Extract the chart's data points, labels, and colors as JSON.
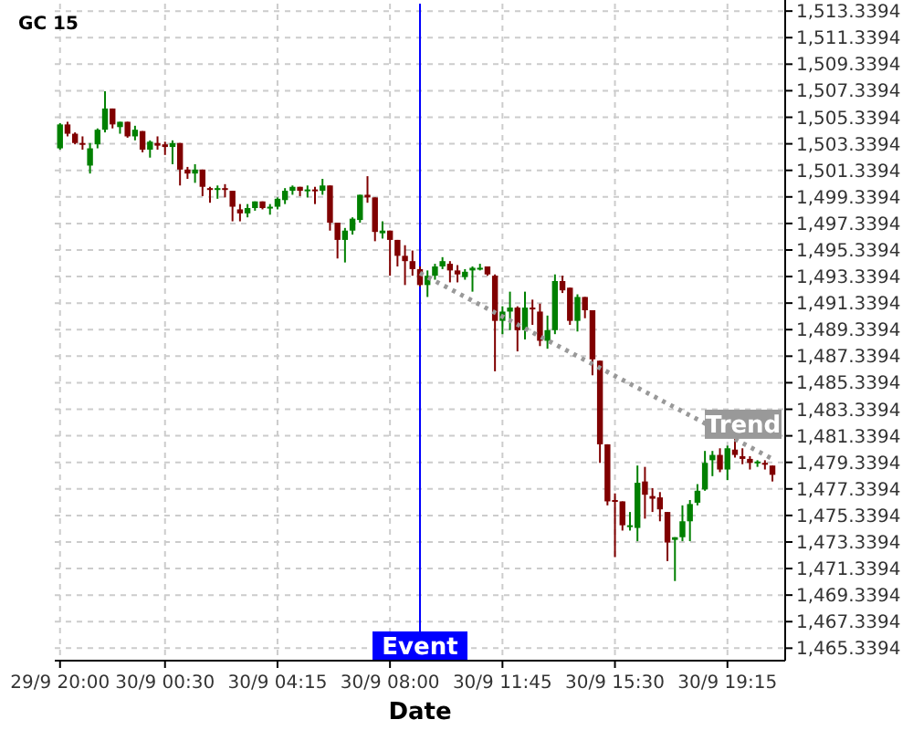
{
  "chart_data": {
    "type": "candlestick",
    "title": "GC 15",
    "xlabel": "Date",
    "categories": [
      "29/9 20:00",
      null,
      null,
      null,
      null,
      null,
      null,
      null,
      null,
      null,
      null,
      null,
      null,
      null,
      "30/9 00:30",
      null,
      null,
      null,
      null,
      null,
      null,
      null,
      null,
      null,
      null,
      null,
      null,
      null,
      null,
      "30/9 04:15",
      null,
      null,
      null,
      null,
      null,
      null,
      null,
      null,
      null,
      null,
      null,
      null,
      null,
      null,
      "30/9 08:00",
      null,
      null,
      null,
      null,
      null,
      null,
      null,
      null,
      null,
      null,
      null,
      null,
      null,
      null,
      "30/9 11:45",
      null,
      null,
      null,
      null,
      null,
      null,
      null,
      null,
      null,
      null,
      null,
      null,
      null,
      null,
      "30/9 15:30",
      null,
      null,
      null,
      null,
      null,
      null,
      null,
      null,
      null,
      null,
      null,
      null,
      null,
      null,
      "30/9 19:15",
      null,
      null,
      null,
      null,
      null,
      null
    ],
    "ohlc": [
      [
        1503.0,
        1504.9,
        1502.9,
        1504.8
      ],
      [
        1504.8,
        1505.0,
        1503.9,
        1504.1
      ],
      [
        1504.1,
        1504.2,
        1503.3,
        1503.4
      ],
      [
        1503.4,
        1503.9,
        1502.9,
        1503.3
      ],
      [
        1501.7,
        1503.4,
        1501.1,
        1503.0
      ],
      [
        1503.3,
        1504.5,
        1503.0,
        1504.4
      ],
      [
        1504.4,
        1507.3,
        1504.2,
        1506.0
      ],
      [
        1506.0,
        1506.0,
        1504.5,
        1504.8
      ],
      [
        1504.6,
        1505.0,
        1504.1,
        1505.0
      ],
      [
        1505.0,
        1505.0,
        1503.8,
        1503.9
      ],
      [
        1503.9,
        1504.7,
        1503.6,
        1504.4
      ],
      [
        1504.3,
        1504.3,
        1502.7,
        1502.9
      ],
      [
        1502.9,
        1503.6,
        1502.3,
        1503.5
      ],
      [
        1503.4,
        1503.9,
        1502.9,
        1503.2
      ],
      [
        1503.3,
        1503.5,
        1502.5,
        1503.1
      ],
      [
        1503.1,
        1503.6,
        1501.8,
        1503.4
      ],
      [
        1503.4,
        1503.4,
        1500.2,
        1501.4
      ],
      [
        1501.4,
        1501.6,
        1500.7,
        1501.1
      ],
      [
        1501.1,
        1501.8,
        1500.4,
        1501.4
      ],
      [
        1501.4,
        1501.4,
        1499.4,
        1500.1
      ],
      [
        1500.0,
        1500.1,
        1498.9,
        1499.9
      ],
      [
        1499.9,
        1500.2,
        1499.2,
        1500.0
      ],
      [
        1500.0,
        1500.3,
        1499.3,
        1499.9
      ],
      [
        1499.8,
        1499.8,
        1497.5,
        1498.6
      ],
      [
        1498.4,
        1498.8,
        1497.5,
        1498.1
      ],
      [
        1498.1,
        1498.8,
        1497.8,
        1498.5
      ],
      [
        1498.5,
        1499.0,
        1498.3,
        1499.0
      ],
      [
        1499.0,
        1499.0,
        1498.4,
        1498.5
      ],
      [
        1498.5,
        1498.8,
        1498.0,
        1498.6
      ],
      [
        1498.6,
        1499.3,
        1498.4,
        1499.2
      ],
      [
        1499.1,
        1500.0,
        1498.8,
        1499.8
      ],
      [
        1499.8,
        1500.2,
        1499.5,
        1500.1
      ],
      [
        1500.1,
        1500.1,
        1499.4,
        1499.8
      ],
      [
        1499.8,
        1500.2,
        1499.3,
        1499.9
      ],
      [
        1499.9,
        1500.1,
        1498.8,
        1499.8
      ],
      [
        1499.8,
        1500.7,
        1499.5,
        1500.2
      ],
      [
        1500.2,
        1500.2,
        1496.8,
        1497.4
      ],
      [
        1497.4,
        1497.4,
        1494.7,
        1496.1
      ],
      [
        1496.1,
        1497.0,
        1494.4,
        1496.8
      ],
      [
        1496.8,
        1497.8,
        1496.5,
        1497.7
      ],
      [
        1497.6,
        1499.5,
        1497.4,
        1499.5
      ],
      [
        1499.5,
        1500.9,
        1498.9,
        1499.3
      ],
      [
        1499.3,
        1499.3,
        1496.0,
        1496.7
      ],
      [
        1496.6,
        1497.5,
        1496.2,
        1496.8
      ],
      [
        1496.8,
        1496.8,
        1493.4,
        1496.1
      ],
      [
        1496.1,
        1496.1,
        1494.1,
        1494.9
      ],
      [
        1494.9,
        1495.7,
        1492.7,
        1494.5
      ],
      [
        1494.5,
        1495.3,
        1493.4,
        1493.9
      ],
      [
        1493.9,
        1494.1,
        1492.6,
        1492.7
      ],
      [
        1492.7,
        1493.8,
        1491.8,
        1493.4
      ],
      [
        1493.4,
        1494.3,
        1493.1,
        1494.1
      ],
      [
        1494.1,
        1494.8,
        1493.9,
        1494.5
      ],
      [
        1494.3,
        1494.5,
        1492.9,
        1493.8
      ],
      [
        1493.8,
        1494.2,
        1492.9,
        1493.5
      ],
      [
        1493.3,
        1493.9,
        1493.1,
        1493.7
      ],
      [
        1493.8,
        1494.1,
        1492.2,
        1494.0
      ],
      [
        1493.9,
        1494.3,
        1493.8,
        1494.0
      ],
      [
        1494.1,
        1494.1,
        1493.4,
        1493.5
      ],
      [
        1493.4,
        1493.5,
        1486.2,
        1490.0
      ],
      [
        1490.0,
        1491.1,
        1489.0,
        1490.7
      ],
      [
        1490.7,
        1492.2,
        1489.3,
        1491.0
      ],
      [
        1491.0,
        1491.1,
        1487.7,
        1489.3
      ],
      [
        1489.3,
        1492.2,
        1488.6,
        1491.0
      ],
      [
        1491.0,
        1491.6,
        1489.7,
        1490.9
      ],
      [
        1490.7,
        1491.3,
        1488.1,
        1488.5
      ],
      [
        1488.5,
        1490.4,
        1487.9,
        1489.3
      ],
      [
        1489.3,
        1493.5,
        1489.0,
        1493.0
      ],
      [
        1493.0,
        1493.4,
        1492.1,
        1492.3
      ],
      [
        1492.5,
        1492.5,
        1489.7,
        1490.0
      ],
      [
        1490.0,
        1492.0,
        1489.2,
        1491.8
      ],
      [
        1491.8,
        1491.8,
        1490.2,
        1490.8
      ],
      [
        1490.8,
        1490.8,
        1485.9,
        1487.1
      ],
      [
        1487.0,
        1487.0,
        1479.3,
        1480.7
      ],
      [
        1480.7,
        1480.7,
        1476.1,
        1476.4
      ],
      [
        1476.5,
        1477.0,
        1472.2,
        1476.4
      ],
      [
        1476.4,
        1476.4,
        1474.2,
        1474.6
      ],
      [
        1474.5,
        1475.6,
        1474.2,
        1474.6
      ],
      [
        1474.4,
        1479.1,
        1473.4,
        1477.8
      ],
      [
        1477.9,
        1479.0,
        1475.1,
        1476.9
      ],
      [
        1476.8,
        1477.4,
        1475.6,
        1476.6
      ],
      [
        1476.7,
        1477.1,
        1474.9,
        1475.8
      ],
      [
        1475.6,
        1475.6,
        1471.9,
        1473.3
      ],
      [
        1473.5,
        1473.7,
        1470.4,
        1473.7
      ],
      [
        1473.7,
        1476.1,
        1473.4,
        1474.9
      ],
      [
        1474.9,
        1476.5,
        1473.4,
        1476.2
      ],
      [
        1476.3,
        1477.7,
        1476.1,
        1477.2
      ],
      [
        1477.3,
        1480.2,
        1477.2,
        1479.3
      ],
      [
        1479.5,
        1480.2,
        1478.3,
        1479.9
      ],
      [
        1479.9,
        1480.4,
        1478.6,
        1478.8
      ],
      [
        1478.8,
        1480.6,
        1478.0,
        1480.4
      ],
      [
        1480.3,
        1481.1,
        1479.7,
        1479.9
      ],
      [
        1479.8,
        1480.4,
        1479.2,
        1479.6
      ],
      [
        1479.6,
        1479.8,
        1478.8,
        1479.3
      ],
      [
        1479.3,
        1479.5,
        1479.0,
        1479.4
      ],
      [
        1479.3,
        1479.5,
        1478.8,
        1479.2
      ],
      [
        1479.1,
        1479.1,
        1477.9,
        1478.4
      ]
    ],
    "colors": [
      "#008000",
      "#800000",
      "#800000",
      "#800000",
      "#008000",
      "#008000",
      "#008000",
      "#800000",
      "#008000",
      "#800000",
      "#008000",
      "#800000",
      "#008000",
      "#800000",
      "#800000",
      "#008000",
      "#800000",
      "#800000",
      "#008000",
      "#800000",
      "#800000",
      "#008000",
      "#800000",
      "#800000",
      "#800000",
      "#008000",
      "#008000",
      "#800000",
      "#008000",
      "#008000",
      "#008000",
      "#008000",
      "#800000",
      "#008000",
      "#800000",
      "#008000",
      "#800000",
      "#800000",
      "#008000",
      "#008000",
      "#008000",
      "#800000",
      "#800000",
      "#008000",
      "#800000",
      "#800000",
      "#800000",
      "#800000",
      "#800000",
      "#008000",
      "#008000",
      "#008000",
      "#800000",
      "#800000",
      "#008000",
      "#008000",
      "#008000",
      "#800000",
      "#800000",
      "#008000",
      "#008000",
      "#800000",
      "#008000",
      "#800000",
      "#800000",
      "#008000",
      "#008000",
      "#800000",
      "#800000",
      "#008000",
      "#800000",
      "#800000",
      "#800000",
      "#800000",
      "#800000",
      "#800000",
      "#008000",
      "#008000",
      "#800000",
      "#800000",
      "#800000",
      "#800000",
      "#008000",
      "#008000",
      "#008000",
      "#008000",
      "#008000",
      "#008000",
      "#800000",
      "#008000",
      "#800000",
      "#800000",
      "#800000",
      "#008000",
      "#800000",
      "#800000"
    ],
    "series": [
      {
        "type": "line",
        "name": "Trend",
        "color": "#999999",
        "line_style": "dotted",
        "values": [
          null,
          null,
          null,
          null,
          null,
          null,
          null,
          null,
          null,
          null,
          null,
          null,
          null,
          null,
          null,
          null,
          null,
          null,
          null,
          null,
          null,
          null,
          null,
          null,
          null,
          null,
          null,
          null,
          null,
          null,
          null,
          null,
          null,
          null,
          null,
          null,
          null,
          null,
          null,
          null,
          null,
          null,
          null,
          null,
          null,
          null,
          null,
          null,
          1493.6,
          null,
          null,
          null,
          null,
          null,
          null,
          null,
          null,
          null,
          null,
          null,
          null,
          null,
          null,
          null,
          null,
          null,
          null,
          null,
          null,
          null,
          null,
          null,
          null,
          null,
          null,
          null,
          null,
          null,
          null,
          null,
          null,
          null,
          null,
          null,
          null,
          null,
          null,
          null,
          null,
          null,
          null,
          null,
          null,
          null,
          null,
          1479.6
        ]
      }
    ],
    "annotations": [
      "Event"
    ],
    "ylim": [
      1464.4,
      1513.9
    ],
    "yticks": [
      {
        "value": 1465.3394,
        "label": "1,465.3394"
      },
      {
        "value": 1467.3394,
        "label": "1,467.3394"
      },
      {
        "value": 1469.3394,
        "label": "1,469.3394"
      },
      {
        "value": 1471.3394,
        "label": "1,471.3394"
      },
      {
        "value": 1473.3394,
        "label": "1,473.3394"
      },
      {
        "value": 1475.3394,
        "label": "1,475.3394"
      },
      {
        "value": 1477.3394,
        "label": "1,477.3394"
      },
      {
        "value": 1479.3394,
        "label": "1,479.3394"
      },
      {
        "value": 1481.3394,
        "label": "1,481.3394"
      },
      {
        "value": 1483.3394,
        "label": "1,483.3394"
      },
      {
        "value": 1485.3394,
        "label": "1,485.3394"
      },
      {
        "value": 1487.3394,
        "label": "1,487.3394"
      },
      {
        "value": 1489.3394,
        "label": "1,489.3394"
      },
      {
        "value": 1491.3394,
        "label": "1,491.3394"
      },
      {
        "value": 1493.3394,
        "label": "1,493.3394"
      },
      {
        "value": 1495.3394,
        "label": "1,495.3394"
      },
      {
        "value": 1497.3394,
        "label": "1,497.3394"
      },
      {
        "value": 1499.3394,
        "label": "1,499.3394"
      },
      {
        "value": 1501.3394,
        "label": "1,501.3394"
      },
      {
        "value": 1503.3394,
        "label": "1,503.3394"
      },
      {
        "value": 1505.3394,
        "label": "1,505.3394"
      },
      {
        "value": 1507.3394,
        "label": "1,507.3394"
      },
      {
        "value": 1509.3394,
        "label": "1,509.3394"
      },
      {
        "value": 1511.3394,
        "label": "1,511.3394"
      },
      {
        "value": 1513.3394,
        "label": "1,513.3394"
      }
    ],
    "grid": true
  }
}
